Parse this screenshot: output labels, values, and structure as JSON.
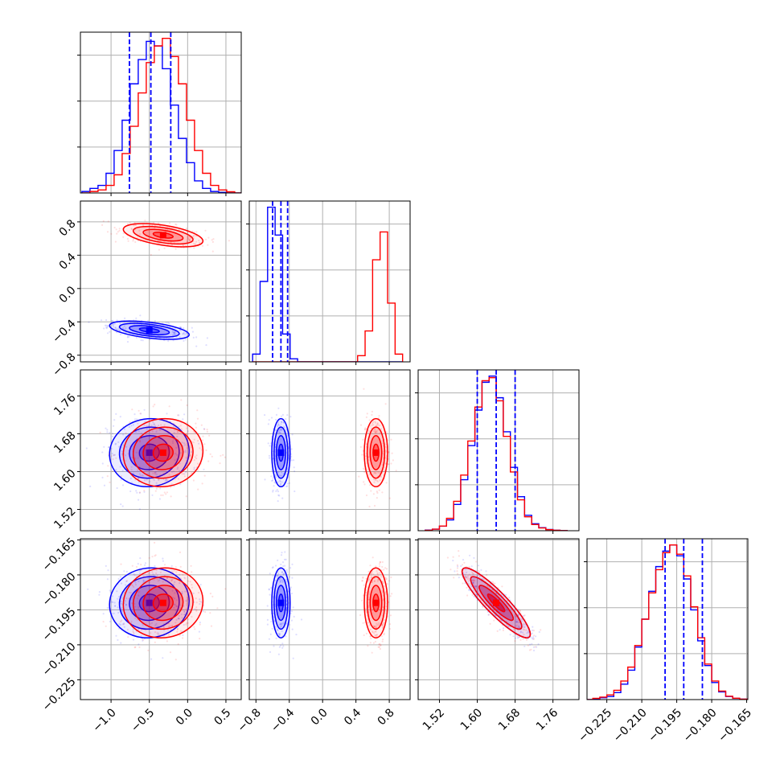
{
  "chart_data": {
    "type": "corner",
    "parameters": [
      "p0",
      "p1",
      "p2",
      "p3"
    ],
    "series": [
      {
        "name": "",
        "color": "#0000ff",
        "mean": [
          -0.5,
          -0.5,
          1.64,
          -0.192
        ],
        "sd": [
          0.26,
          0.055,
          0.036,
          0.0075
        ]
      },
      {
        "name": "",
        "color": "#ff0000",
        "mean": [
          -0.32,
          0.64,
          1.64,
          -0.192
        ],
        "sd": [
          0.26,
          0.07,
          0.036,
          0.0075
        ]
      }
    ],
    "correlation_notes": "p0-p1 negative (~-0.5), p2-p3 strongly negative (~-0.9)",
    "quantile_lines": {
      "color": "#0000ff",
      "style": "dashed",
      "p0": [
        -0.76,
        -0.48,
        -0.22
      ],
      "p1": [
        -0.6,
        -0.5,
        -0.42
      ],
      "p2": [
        1.6,
        1.64,
        1.68
      ],
      "p3": [
        -0.2,
        -0.192,
        -0.184
      ]
    },
    "axes": {
      "p0": {
        "range": [
          -1.4,
          0.7
        ],
        "ticks": [
          -1.0,
          -0.5,
          0.0,
          0.5
        ],
        "tick_labels": [
          "−1.0",
          "−0.5",
          "0.0",
          "0.5"
        ]
      },
      "p1": {
        "range": [
          -0.88,
          1.05
        ],
        "ticks": [
          -0.8,
          -0.4,
          0.0,
          0.4,
          0.8
        ],
        "tick_labels": [
          "−0.8",
          "−0.4",
          "0.0",
          "0.4",
          "0.8"
        ]
      },
      "p2": {
        "range": [
          1.475,
          1.815
        ],
        "ticks": [
          1.52,
          1.6,
          1.68,
          1.76
        ],
        "tick_labels": [
          "1.52",
          "1.60",
          "1.68",
          "1.76"
        ]
      },
      "p3": {
        "range": [
          -0.2335,
          -0.1645
        ],
        "ticks": [
          -0.225,
          -0.21,
          -0.195,
          -0.18,
          -0.165
        ],
        "tick_labels": [
          "−0.225",
          "−0.210",
          "−0.195",
          "−0.180",
          "−0.165"
        ]
      }
    },
    "grid": true,
    "legend": "none",
    "histograms": {
      "p0": {
        "bins": [
          -1.38,
          -1.275,
          -1.17,
          -1.065,
          -0.96,
          -0.855,
          -0.75,
          -0.645,
          -0.54,
          -0.435,
          -0.33,
          -0.225,
          -0.12,
          -0.015,
          0.09,
          0.195,
          0.3,
          0.405,
          0.51,
          0.615,
          0.72
        ],
        "blue": [
          0.01,
          0.03,
          0.05,
          0.13,
          0.28,
          0.48,
          0.72,
          0.88,
          1.0,
          0.97,
          0.82,
          0.58,
          0.36,
          0.2,
          0.08,
          0.03,
          0.01,
          0.004,
          0.0,
          0.0
        ],
        "red": [
          0.0,
          0.01,
          0.02,
          0.05,
          0.12,
          0.26,
          0.44,
          0.66,
          0.86,
          0.97,
          1.02,
          0.9,
          0.72,
          0.48,
          0.28,
          0.13,
          0.05,
          0.02,
          0.008,
          0.0
        ]
      },
      "p1": {
        "bins": [
          -0.84,
          -0.75,
          -0.66,
          -0.57,
          -0.48,
          -0.39,
          -0.3,
          -0.21,
          -0.12,
          -0.03,
          0.06,
          0.15,
          0.24,
          0.33,
          0.42,
          0.51,
          0.6,
          0.69,
          0.78,
          0.87,
          0.96
        ],
        "blue": [
          0.05,
          0.52,
          1.0,
          0.82,
          0.18,
          0.02,
          0,
          0,
          0,
          0,
          0,
          0,
          0,
          0,
          0,
          0,
          0,
          0,
          0,
          0
        ],
        "red": [
          0,
          0,
          0,
          0,
          0,
          0,
          0,
          0,
          0,
          0,
          0,
          0,
          0,
          0,
          0.04,
          0.2,
          0.66,
          0.84,
          0.38,
          0.05
        ]
      },
      "p2": {
        "bins": [
          1.49,
          1.505,
          1.52,
          1.535,
          1.55,
          1.565,
          1.58,
          1.595,
          1.61,
          1.625,
          1.64,
          1.655,
          1.67,
          1.685,
          1.7,
          1.715,
          1.73,
          1.745,
          1.76,
          1.775,
          1.79
        ],
        "blue": [
          0.004,
          0.01,
          0.03,
          0.07,
          0.17,
          0.33,
          0.55,
          0.78,
          0.96,
          1.0,
          0.86,
          0.64,
          0.41,
          0.22,
          0.1,
          0.045,
          0.02,
          0.008,
          0.003,
          0.001
        ],
        "red": [
          0.003,
          0.01,
          0.03,
          0.08,
          0.19,
          0.36,
          0.58,
          0.8,
          0.97,
          0.99,
          0.84,
          0.61,
          0.38,
          0.2,
          0.09,
          0.04,
          0.018,
          0.007,
          0.003,
          0.001
        ]
      },
      "p3": {
        "bins": [
          -0.2335,
          -0.231,
          -0.228,
          -0.225,
          -0.222,
          -0.219,
          -0.216,
          -0.213,
          -0.21,
          -0.207,
          -0.204,
          -0.201,
          -0.198,
          -0.195,
          -0.192,
          -0.189,
          -0.186,
          -0.183,
          -0.18,
          -0.177,
          -0.174,
          -0.171,
          -0.168,
          -0.1645
        ],
        "blue": [
          0.0,
          0.006,
          0.012,
          0.02,
          0.045,
          0.1,
          0.19,
          0.34,
          0.52,
          0.7,
          0.86,
          0.96,
          1.0,
          0.93,
          0.78,
          0.58,
          0.38,
          0.22,
          0.11,
          0.05,
          0.02,
          0.008,
          0.003
        ],
        "red": [
          0.0,
          0.008,
          0.016,
          0.03,
          0.06,
          0.12,
          0.21,
          0.35,
          0.52,
          0.69,
          0.84,
          0.95,
          1.0,
          0.94,
          0.8,
          0.6,
          0.4,
          0.23,
          0.12,
          0.055,
          0.022,
          0.009,
          0.003
        ]
      }
    }
  }
}
